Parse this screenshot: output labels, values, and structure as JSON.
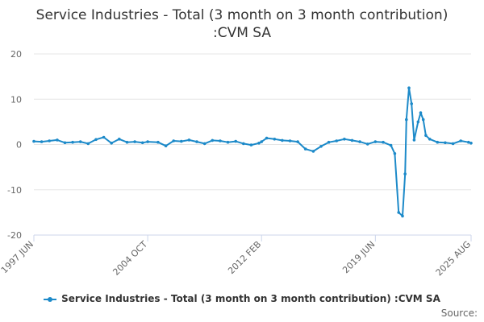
{
  "title": "Service Industries - Total (3 month on 3 month contribution) :CVM SA",
  "legend_label": "Service Industries - Total (3 month on 3 month contribution) :CVM SA",
  "credits": "Source:",
  "series_color": "#1d8ac9",
  "chart_data": {
    "type": "line",
    "title": "Service Industries - Total (3 month on 3 month contribution) :CVM SA",
    "xlabel": "",
    "ylabel": "",
    "ylim": [
      -20,
      20
    ],
    "yticks": [
      "20",
      "10",
      "0",
      "-10",
      "-20"
    ],
    "xticks": [
      "1997 JUN",
      "2004 OCT",
      "2012 FEB",
      "2019 JUN",
      "2025 AUG"
    ],
    "grid": "horizontal",
    "legend": "bottom",
    "series": [
      {
        "name": "Service Industries - Total (3 month on 3 month contribution) :CVM SA",
        "points": [
          [
            "1997 JUN",
            0.7
          ],
          [
            "1997 DEC",
            0.6
          ],
          [
            "1998 JUN",
            0.8
          ],
          [
            "1998 DEC",
            1.0
          ],
          [
            "1999 JUN",
            0.4
          ],
          [
            "1999 DEC",
            0.5
          ],
          [
            "2000 JUN",
            0.6
          ],
          [
            "2000 DEC",
            0.2
          ],
          [
            "2001 JUN",
            1.1
          ],
          [
            "2001 DEC",
            1.6
          ],
          [
            "2002 JUN",
            0.3
          ],
          [
            "2002 DEC",
            1.2
          ],
          [
            "2003 JUN",
            0.5
          ],
          [
            "2003 DEC",
            0.6
          ],
          [
            "2004 JUN",
            0.4
          ],
          [
            "2004 OCT",
            0.6
          ],
          [
            "2005 JUN",
            0.5
          ],
          [
            "2005 DEC",
            -0.3
          ],
          [
            "2006 JUN",
            0.8
          ],
          [
            "2006 DEC",
            0.7
          ],
          [
            "2007 JUN",
            1.0
          ],
          [
            "2007 DEC",
            0.6
          ],
          [
            "2008 JUN",
            0.2
          ],
          [
            "2008 DEC",
            0.9
          ],
          [
            "2009 JUN",
            0.8
          ],
          [
            "2009 DEC",
            0.5
          ],
          [
            "2010 JUN",
            0.7
          ],
          [
            "2010 DEC",
            0.2
          ],
          [
            "2011 JUN",
            -0.1
          ],
          [
            "2011 DEC",
            0.3
          ],
          [
            "2012 FEB",
            0.6
          ],
          [
            "2012 JUN",
            1.4
          ],
          [
            "2012 DEC",
            1.2
          ],
          [
            "2013 JUN",
            0.9
          ],
          [
            "2013 DEC",
            0.8
          ],
          [
            "2014 JUN",
            0.6
          ],
          [
            "2014 DEC",
            -1.0
          ],
          [
            "2015 JUN",
            -1.5
          ],
          [
            "2015 DEC",
            -0.4
          ],
          [
            "2016 JUN",
            0.5
          ],
          [
            "2016 DEC",
            0.8
          ],
          [
            "2017 JUN",
            1.2
          ],
          [
            "2017 DEC",
            0.9
          ],
          [
            "2018 JUN",
            0.6
          ],
          [
            "2018 DEC",
            0.1
          ],
          [
            "2019 JUN",
            0.6
          ],
          [
            "2019 DEC",
            0.5
          ],
          [
            "2020 JUN",
            -0.2
          ],
          [
            "2020 SEP",
            -2.0
          ],
          [
            "2020 DEC",
            -15.0
          ],
          [
            "2021 MAR",
            -15.8
          ],
          [
            "2021 MAY",
            -6.5
          ],
          [
            "2021 JUN",
            5.5
          ],
          [
            "2021 AUG",
            12.5
          ],
          [
            "2021 OCT",
            9.0
          ],
          [
            "2021 DEC",
            1.0
          ],
          [
            "2022 MAR",
            5.0
          ],
          [
            "2022 MAY",
            7.0
          ],
          [
            "2022 JUL",
            5.5
          ],
          [
            "2022 SEP",
            2.0
          ],
          [
            "2022 DEC",
            1.2
          ],
          [
            "2023 JUN",
            0.5
          ],
          [
            "2023 DEC",
            0.4
          ],
          [
            "2024 JUN",
            0.2
          ],
          [
            "2024 DEC",
            0.8
          ],
          [
            "2025 JUN",
            0.5
          ],
          [
            "2025 AUG",
            0.3
          ]
        ]
      }
    ]
  }
}
